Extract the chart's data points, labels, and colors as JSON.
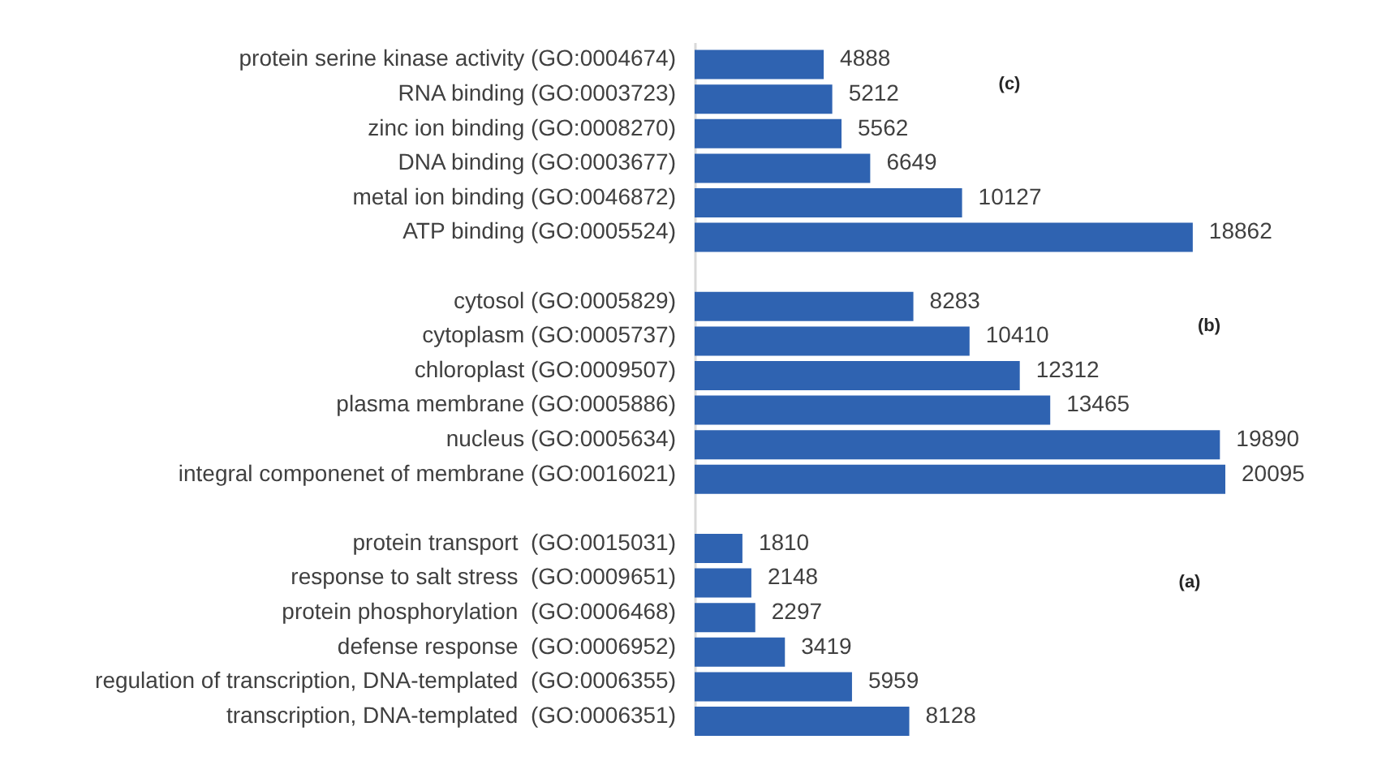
{
  "chart_data": {
    "type": "bar",
    "orientation": "horizontal",
    "categories": [
      "protein serine kinase activity (GO:0004674)",
      "RNA binding (GO:0003723)",
      "zinc ion binding (GO:0008270)",
      "DNA binding (GO:0003677)",
      "metal ion binding (GO:0046872)",
      "ATP binding (GO:0005524)",
      null,
      "cytosol (GO:0005829)",
      "cytoplasm (GO:0005737)",
      "chloroplast (GO:0009507)",
      "plasma membrane (GO:0005886)",
      "nucleus (GO:0005634)",
      "integral componenet of membrane (GO:0016021)",
      null,
      "protein transport  (GO:0015031)",
      "response to salt stress  (GO:0009651)",
      "protein phosphorylation  (GO:0006468)",
      "defense response  (GO:0006952)",
      "regulation of transcription, DNA-templated  (GO:0006355)",
      "transcription, DNA-templated  (GO:0006351)"
    ],
    "values": [
      4888,
      5212,
      5562,
      6649,
      10127,
      18862,
      null,
      8283,
      10410,
      12312,
      13465,
      19890,
      20095,
      null,
      1810,
      2148,
      2297,
      3419,
      5959,
      8128
    ],
    "color": "#2f63b1",
    "data_labels": true,
    "tick_labels": "y",
    "annotations": [
      "(c)",
      "(b)",
      "(a)"
    ]
  }
}
